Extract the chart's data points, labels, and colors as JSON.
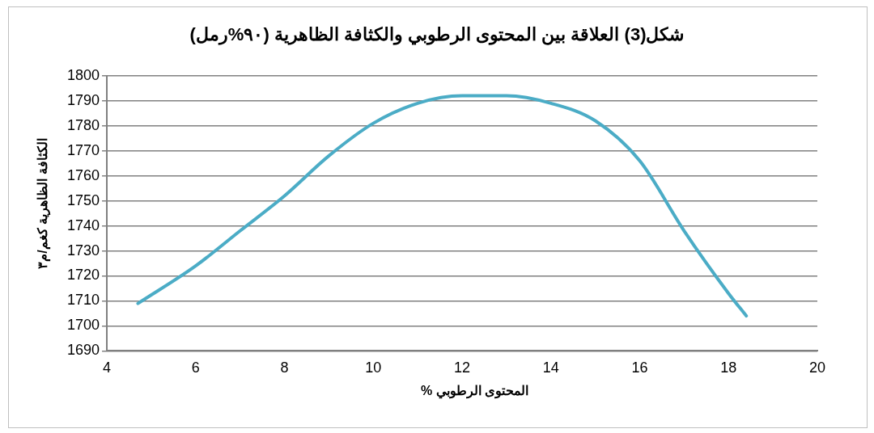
{
  "chart_data": {
    "type": "line",
    "title": "شكل(3) العلاقة بين المحتوى الرطوبي والكثافة الظاهرية (٩٠%رمل)",
    "xlabel": "المحتوى الرطوبي %",
    "ylabel": "الكثافة الظاهرية كغم/م٣",
    "x": [
      4.7,
      6,
      7,
      8,
      9,
      10,
      11,
      12,
      13,
      14,
      15,
      16,
      17,
      18,
      18.4
    ],
    "series": [
      {
        "color": "#4bacc6",
        "values": [
          1709,
          1724,
          1738,
          1752,
          1768,
          1781,
          1789,
          1792,
          1792,
          1789,
          1782,
          1766,
          1738,
          1713,
          1704
        ]
      }
    ],
    "xlim": [
      4,
      20
    ],
    "xticks": [
      4,
      6,
      8,
      10,
      12,
      14,
      16,
      18,
      20
    ],
    "ylim": [
      1690,
      1800
    ],
    "yticks": [
      1690,
      1700,
      1710,
      1720,
      1730,
      1740,
      1750,
      1760,
      1770,
      1780,
      1790,
      1800
    ],
    "grid": "y",
    "legend": false,
    "marker": "none",
    "line_style": "solid"
  }
}
